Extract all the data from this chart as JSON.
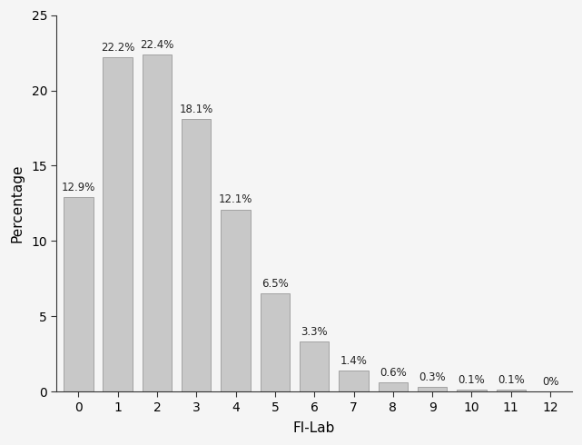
{
  "categories": [
    0,
    1,
    2,
    3,
    4,
    5,
    6,
    7,
    8,
    9,
    10,
    11,
    12
  ],
  "values": [
    12.9,
    22.2,
    22.4,
    18.1,
    12.1,
    6.5,
    3.3,
    1.4,
    0.6,
    0.3,
    0.1,
    0.1,
    0.0
  ],
  "labels": [
    "12.9%",
    "22.2%",
    "22.4%",
    "18.1%",
    "12.1%",
    "6.5%",
    "3.3%",
    "1.4%",
    "0.6%",
    "0.3%",
    "0.1%",
    "0.1%",
    "0%"
  ],
  "bar_color": "#c8c8c8",
  "bar_edgecolor": "#999999",
  "xlabel": "FI-Lab",
  "ylabel": "Percentage",
  "ylim": [
    0,
    25
  ],
  "yticks": [
    0,
    5,
    10,
    15,
    20,
    25
  ],
  "label_fontsize": 8.5,
  "axis_label_fontsize": 11,
  "tick_fontsize": 10,
  "background_color": "#f5f5f5",
  "bar_width": 0.75
}
